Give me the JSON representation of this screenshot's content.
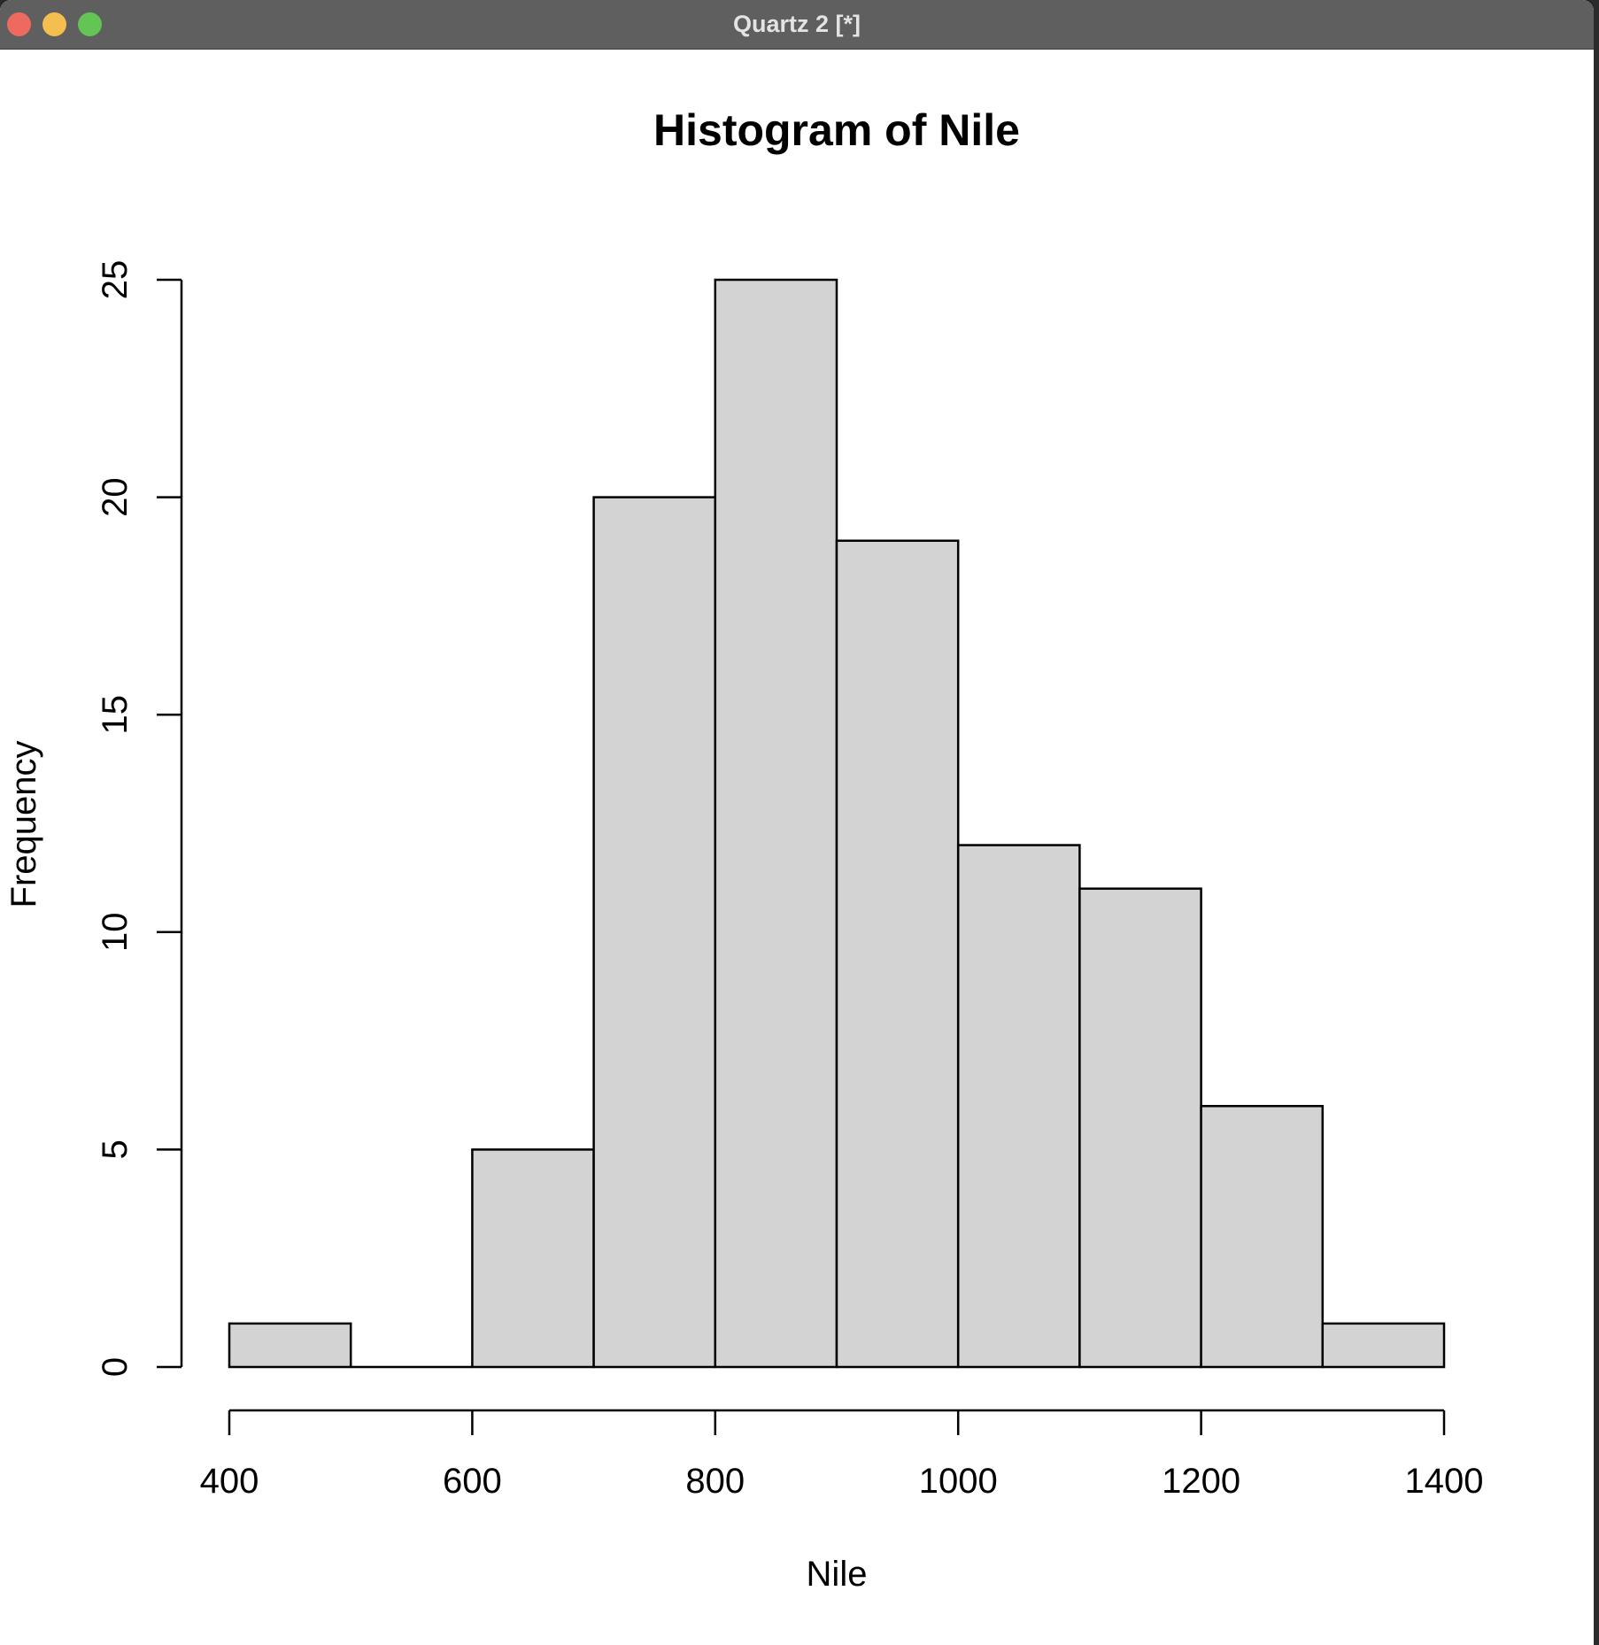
{
  "window": {
    "title": "Quartz 2 [*]",
    "controls": [
      "close",
      "minimize",
      "maximize"
    ]
  },
  "colors": {
    "bar_fill": "#d3d3d3",
    "bar_stroke": "#000000",
    "titlebar": "#5f5f5f"
  },
  "chart_data": {
    "type": "bar",
    "title": "Histogram of Nile",
    "xlabel": "Nile",
    "ylabel": "Frequency",
    "bins": [
      [
        400,
        500
      ],
      [
        500,
        600
      ],
      [
        600,
        700
      ],
      [
        700,
        800
      ],
      [
        800,
        900
      ],
      [
        900,
        1000
      ],
      [
        1000,
        1100
      ],
      [
        1100,
        1200
      ],
      [
        1200,
        1300
      ],
      [
        1300,
        1400
      ]
    ],
    "values": [
      1,
      0,
      5,
      20,
      25,
      19,
      12,
      11,
      6,
      1
    ],
    "x_ticks": [
      400,
      600,
      800,
      1000,
      1200,
      1400
    ],
    "y_ticks": [
      0,
      5,
      10,
      15,
      20,
      25
    ],
    "xlim": [
      400,
      1400
    ],
    "ylim": [
      0,
      25
    ],
    "grid": false,
    "legend": "none"
  }
}
